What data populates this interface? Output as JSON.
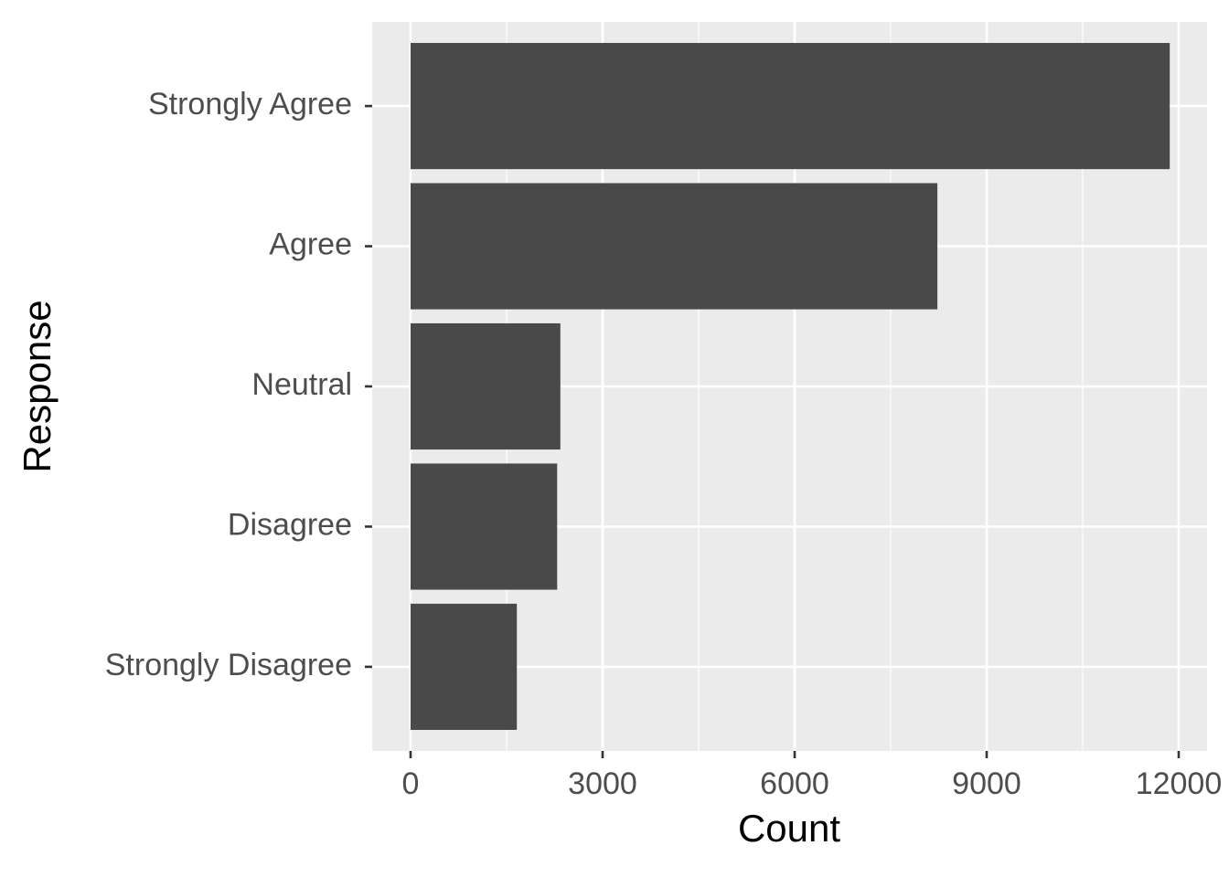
{
  "chart_data": {
    "type": "bar",
    "orientation": "horizontal",
    "x_label": "Count",
    "y_label": "Response",
    "categories": [
      "Strongly Agree",
      "Agree",
      "Neutral",
      "Disagree",
      "Strongly Disagree"
    ],
    "values": [
      11860,
      8230,
      2340,
      2290,
      1660
    ],
    "color": "#494949",
    "xlim": [
      -600,
      12443
    ],
    "xticks": [
      0,
      3000,
      6000,
      9000,
      12000
    ],
    "x_minor_ticks": [
      1500,
      4500,
      7500,
      10500
    ],
    "grid": true
  }
}
